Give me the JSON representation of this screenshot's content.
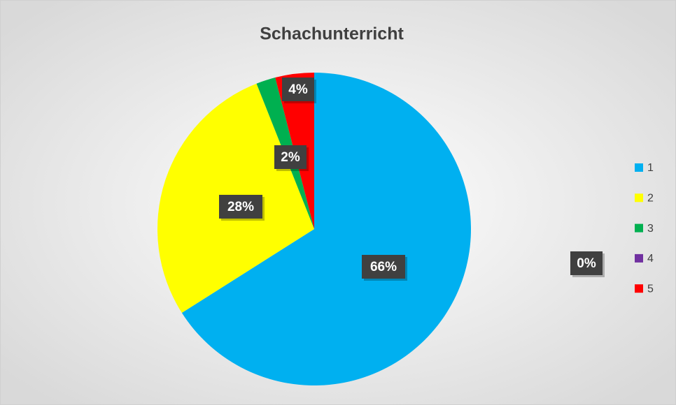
{
  "chart_data": {
    "type": "pie",
    "title": "Schachunterricht",
    "categories": [
      "1",
      "2",
      "3",
      "4",
      "5"
    ],
    "values": [
      66,
      28,
      2,
      0,
      4
    ],
    "value_labels": [
      "66%",
      "28%",
      "2%",
      "0%",
      "4%"
    ],
    "colors": [
      "#00b0f0",
      "#ffff00",
      "#00b050",
      "#7030a0",
      "#ff0000"
    ],
    "legend": "right"
  }
}
